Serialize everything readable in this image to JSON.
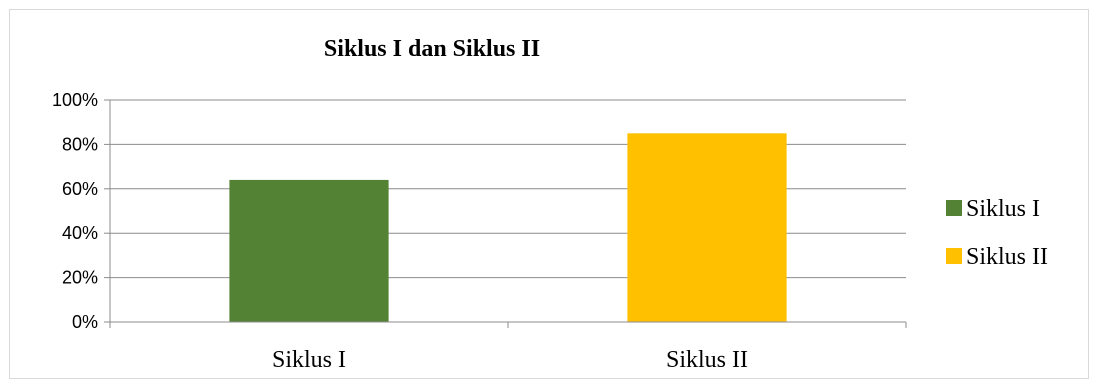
{
  "chart_data": {
    "type": "bar",
    "title": "Siklus I dan Siklus II",
    "categories": [
      "Siklus I",
      "Siklus II"
    ],
    "values": [
      0.64,
      0.85
    ],
    "value_format": "percent",
    "ylim": [
      0,
      1
    ],
    "yticks": [
      0,
      0.2,
      0.4,
      0.6,
      0.8,
      1.0
    ],
    "ytick_labels": [
      "0%",
      "20%",
      "40%",
      "60%",
      "80%",
      "100%"
    ],
    "grid": true,
    "legend_position": "right",
    "legend": [
      {
        "label": "Siklus I",
        "color": "#548235"
      },
      {
        "label": "Siklus II",
        "color": "#FFC000"
      }
    ],
    "bar_colors": [
      "#548235",
      "#FFC000"
    ],
    "xlabel": "",
    "ylabel": ""
  }
}
